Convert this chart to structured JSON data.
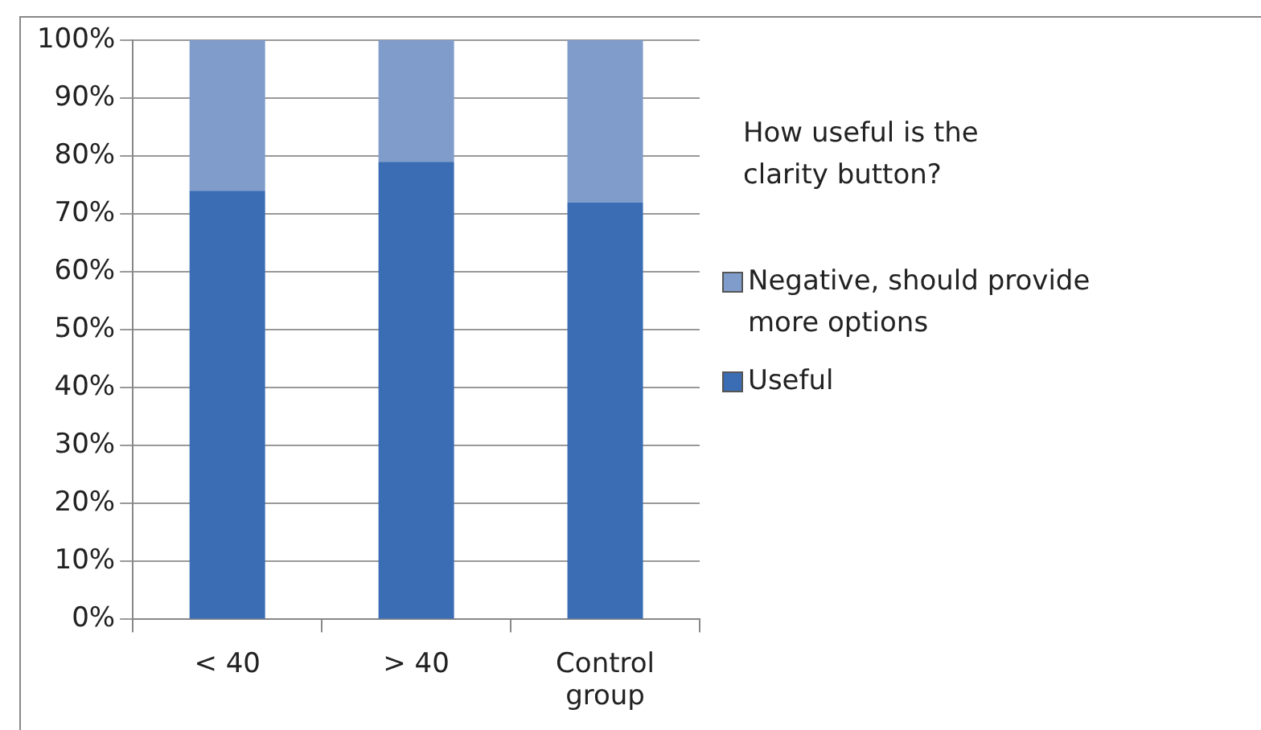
{
  "chart_data": {
    "type": "bar",
    "legend_title": "How useful is the clarity button?",
    "categories": [
      "< 40",
      "> 40",
      "Control group"
    ],
    "stacked": true,
    "series": [
      {
        "name": "Useful",
        "color": "#3a6db4",
        "values": [
          74,
          79,
          72
        ]
      },
      {
        "name": "Negative, should provide more options",
        "color": "#7f9ccb",
        "values": [
          26,
          21,
          28
        ]
      }
    ],
    "ylim": [
      0,
      100
    ],
    "yticks": [
      {
        "value": 0,
        "label": "0%"
      },
      {
        "value": 10,
        "label": "10%"
      },
      {
        "value": 20,
        "label": "20%"
      },
      {
        "value": 30,
        "label": "30%"
      },
      {
        "value": 40,
        "label": "40%"
      },
      {
        "value": 50,
        "label": "50%"
      },
      {
        "value": 60,
        "label": "60%"
      },
      {
        "value": 70,
        "label": "70%"
      },
      {
        "value": 80,
        "label": "80%"
      },
      {
        "value": 90,
        "label": "90%"
      },
      {
        "value": 100,
        "label": "100%"
      }
    ],
    "grid": "y",
    "legend": "right"
  }
}
